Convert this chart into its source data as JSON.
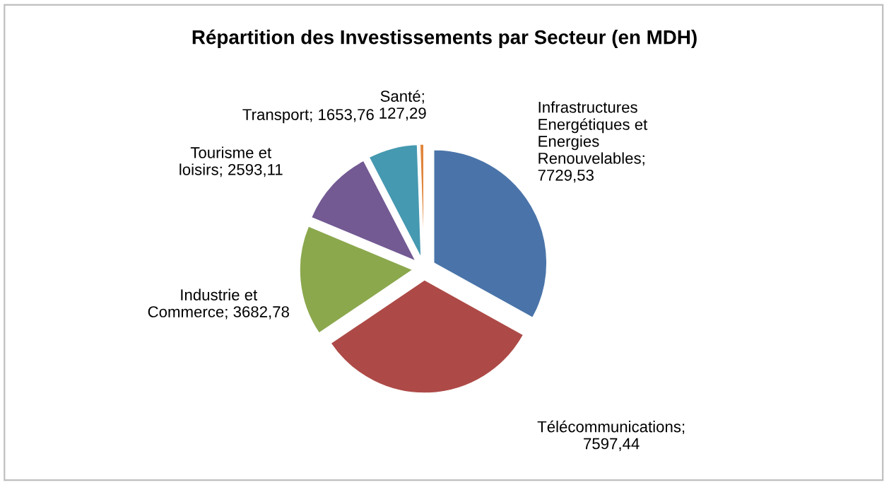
{
  "chart_data": {
    "type": "pie",
    "title": "Répartition des Investissements par Secteur (en MDH)",
    "categories": [
      "Infrastructures Energétiques et Energies Renouvelables",
      "Télécommunications",
      "Industrie et Commerce",
      "Tourisme et loisirs",
      "Transport",
      "Santé"
    ],
    "values": [
      7729.53,
      7597.44,
      3682.78,
      2593.11,
      1653.76,
      127.29
    ],
    "value_labels": [
      "; 7729,53",
      "; 7597,44",
      "; 3682,78",
      "; 2593,11",
      "; 1653,76",
      "; 127,29"
    ],
    "colors": [
      "#4a74a9",
      "#ad4a47",
      "#8ba84d",
      "#735a93",
      "#4599b0",
      "#e0853c"
    ],
    "legend": false
  }
}
